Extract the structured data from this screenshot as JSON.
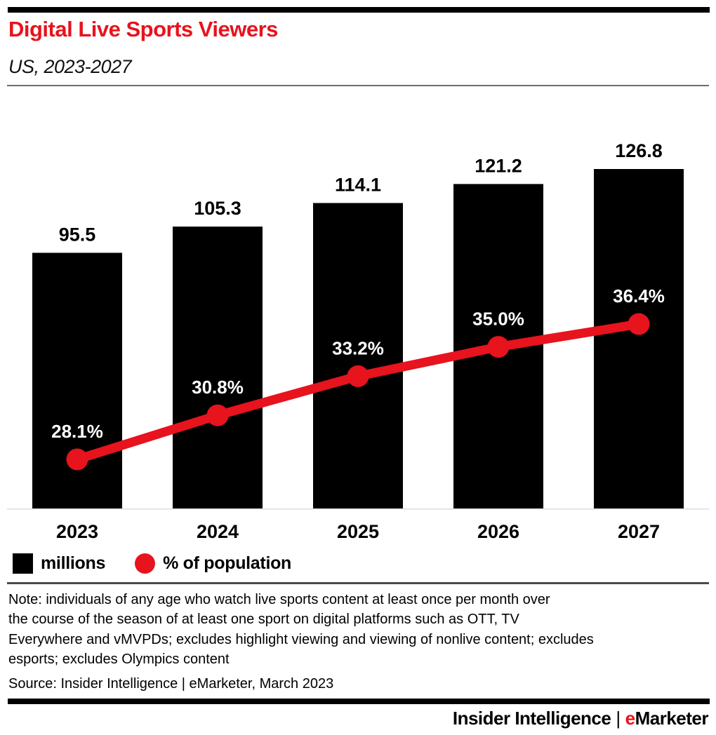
{
  "colors": {
    "red": "#e7131d",
    "black": "#000000",
    "rule_gray": "#6e6e6e",
    "rule_dark": "#4a4a4a",
    "baseline_gray": "#d9dde6",
    "pct_label_text": "#ffffff"
  },
  "header": {
    "title": "Digital Live Sports Viewers",
    "subtitle": "US, 2023-2027"
  },
  "chart_data": {
    "type": "bar",
    "combo": "bar+line",
    "title": "Digital Live Sports Viewers",
    "subtitle": "US, 2023-2027",
    "categories": [
      "2023",
      "2024",
      "2025",
      "2026",
      "2027"
    ],
    "series": [
      {
        "name": "millions",
        "type": "bar",
        "color": "#000000",
        "values": [
          95.5,
          105.3,
          114.1,
          121.2,
          126.8
        ],
        "labels": [
          "95.5",
          "105.3",
          "114.1",
          "121.2",
          "126.8"
        ]
      },
      {
        "name": "% of population",
        "type": "line",
        "color": "#e7131d",
        "values": [
          28.1,
          30.8,
          33.2,
          35.0,
          36.4
        ],
        "labels": [
          "28.1%",
          "30.8%",
          "33.2%",
          "35.0%",
          "36.4%"
        ]
      }
    ],
    "xlabel": "",
    "ylabel": "",
    "bar_axis_range": [
      0,
      130
    ],
    "grid": false,
    "legend_position": "bottom"
  },
  "legend": {
    "items": [
      {
        "label": "millions",
        "marker": "square",
        "color": "#000000"
      },
      {
        "label": "% of population",
        "marker": "circle",
        "color": "#e7131d"
      }
    ]
  },
  "note": {
    "lines": [
      "Note: individuals of any age who watch live sports content at least once per month over",
      "the course of the season of at least one sport on digital platforms such as OTT, TV",
      "Everywhere and vMVPDs; excludes highlight viewing and viewing of nonlive content; excludes",
      "esports; excludes Olympics content"
    ]
  },
  "source": "Source: Insider Intelligence | eMarketer, March 2023",
  "footer": {
    "left": "Insider Intelligence",
    "separator": "|",
    "brand_e": "e",
    "brand_rest": "Marketer"
  }
}
